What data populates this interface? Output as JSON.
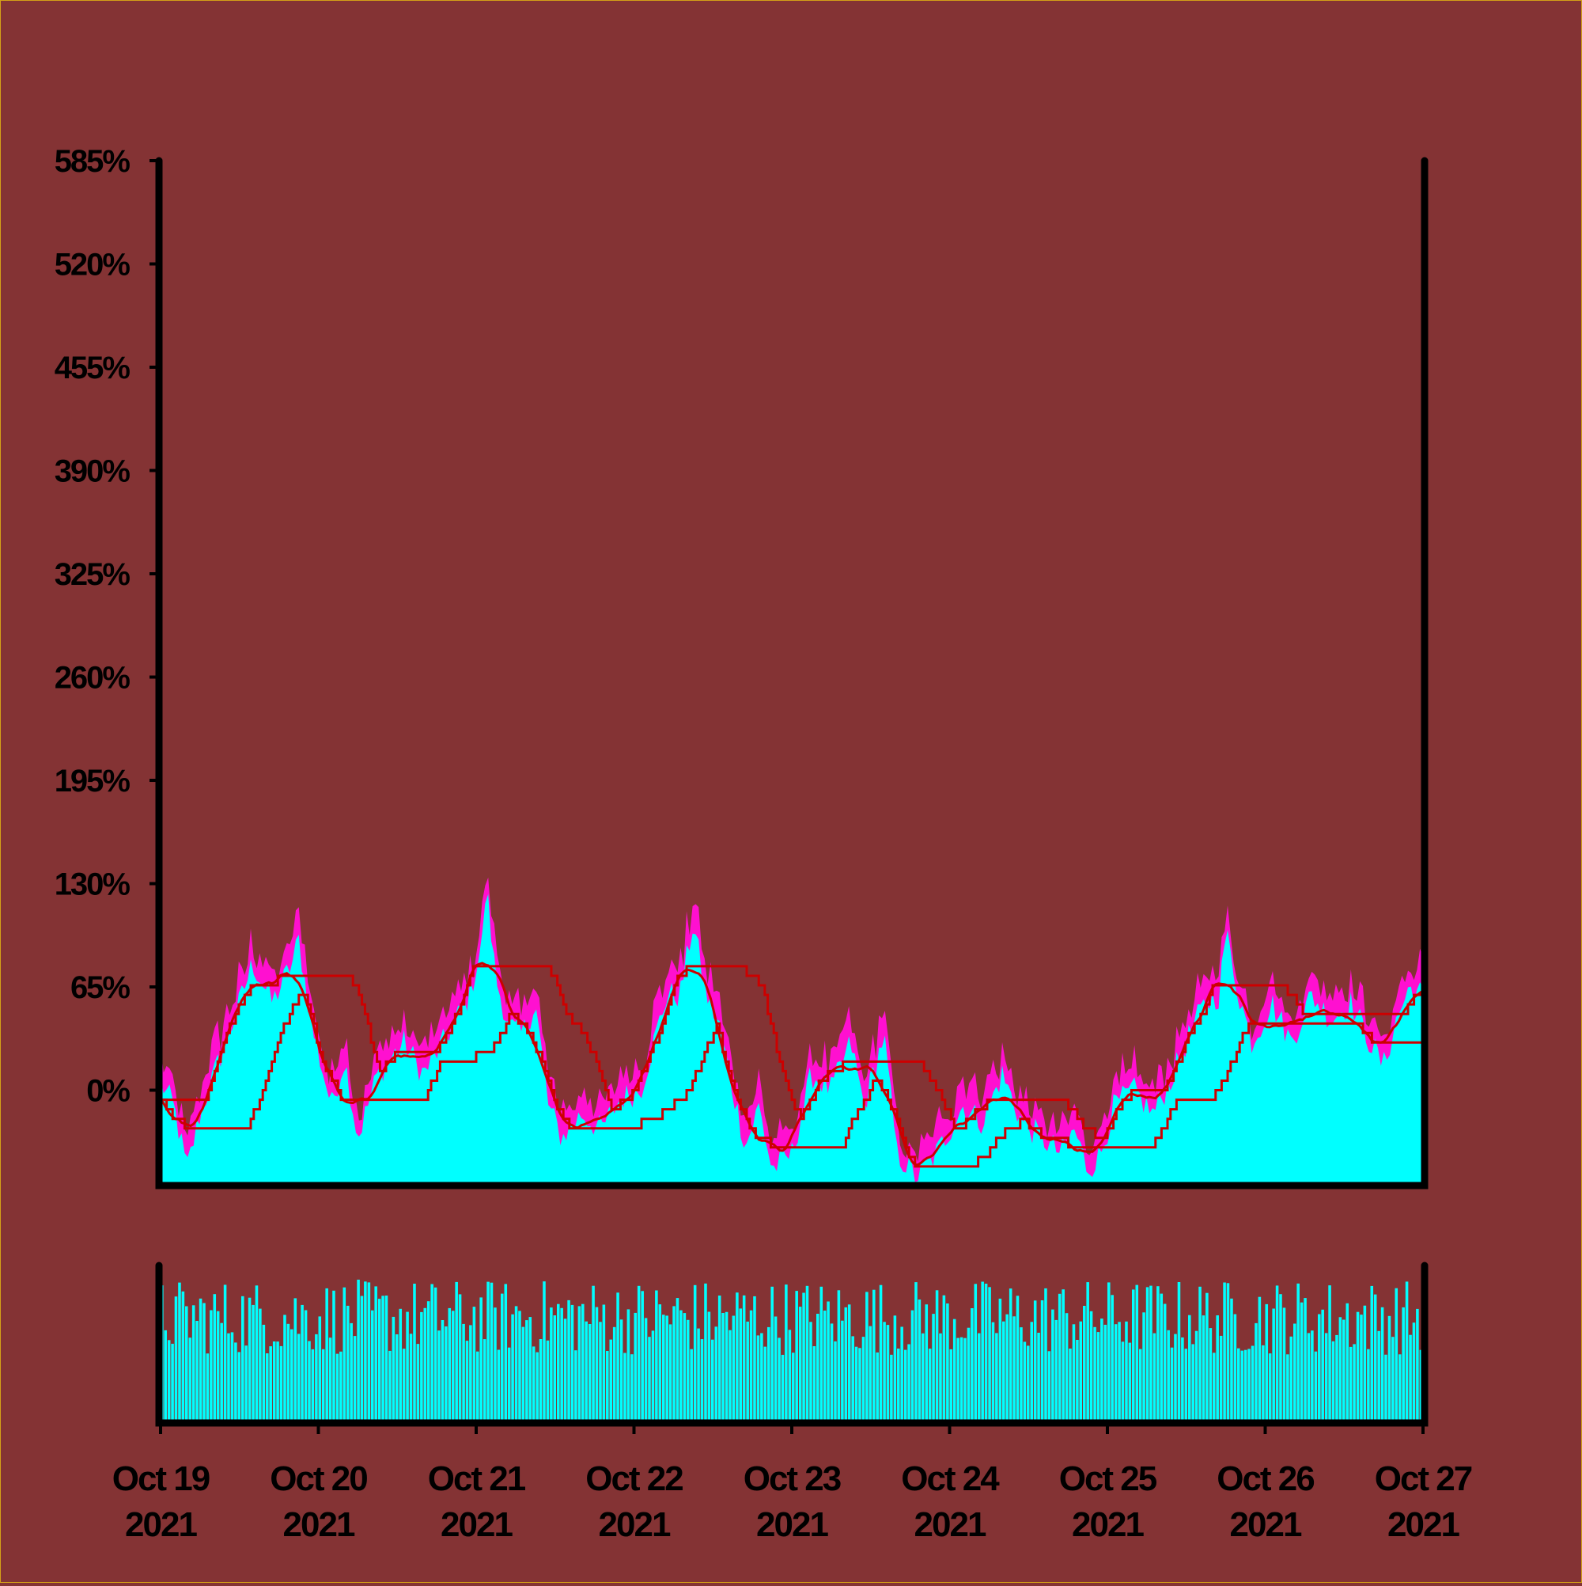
{
  "chart_data": {
    "type": "area",
    "title": "",
    "xlabel": "",
    "ylabel": "",
    "x_range": [
      "2021-10-19",
      "2021-10-27"
    ],
    "ylim": [
      -60,
      585
    ],
    "y_ticks": [
      "0%",
      "65%",
      "130%",
      "195%",
      "260%",
      "325%",
      "390%",
      "455%",
      "520%",
      "585%"
    ],
    "y_tick_values": [
      0,
      65,
      130,
      195,
      260,
      325,
      390,
      455,
      520,
      585
    ],
    "x_ticks": [
      {
        "date": "2021-10-19",
        "line1": "Oct 19",
        "line2": "2021"
      },
      {
        "date": "2021-10-20",
        "line1": "Oct 20",
        "line2": "2021"
      },
      {
        "date": "2021-10-21",
        "line1": "Oct 21",
        "line2": "2021"
      },
      {
        "date": "2021-10-22",
        "line1": "Oct 22",
        "line2": "2021"
      },
      {
        "date": "2021-10-23",
        "line1": "Oct 23",
        "line2": "2021"
      },
      {
        "date": "2021-10-24",
        "line1": "Oct 24",
        "line2": "2021"
      },
      {
        "date": "2021-10-25",
        "line1": "Oct 25",
        "line2": "2021"
      },
      {
        "date": "2021-10-26",
        "line1": "Oct 26",
        "line2": "2021"
      },
      {
        "date": "2021-10-27",
        "line1": "Oct 27",
        "line2": "2021"
      }
    ],
    "grid": false,
    "series_price_keypoints": [
      [
        "2021-10-19 00:00",
        5
      ],
      [
        "2021-10-19 02:00",
        -10
      ],
      [
        "2021-10-19 04:00",
        -50
      ],
      [
        "2021-10-19 06:00",
        -15
      ],
      [
        "2021-10-19 09:00",
        20
      ],
      [
        "2021-10-19 12:00",
        55
      ],
      [
        "2021-10-19 14:00",
        80
      ],
      [
        "2021-10-19 17:00",
        55
      ],
      [
        "2021-10-19 20:00",
        80
      ],
      [
        "2021-10-19 21:00",
        95
      ],
      [
        "2021-10-19 23:00",
        40
      ],
      [
        "2021-10-20 02:00",
        -10
      ],
      [
        "2021-10-20 04:00",
        20
      ],
      [
        "2021-10-20 06:00",
        -30
      ],
      [
        "2021-10-20 09:00",
        10
      ],
      [
        "2021-10-20 13:00",
        30
      ],
      [
        "2021-10-20 16:00",
        10
      ],
      [
        "2021-10-20 19:00",
        30
      ],
      [
        "2021-10-20 21:00",
        45
      ],
      [
        "2021-10-20 23:00",
        60
      ],
      [
        "2021-10-21 01:00",
        95
      ],
      [
        "2021-10-21 01:30",
        130
      ],
      [
        "2021-10-21 03:00",
        70
      ],
      [
        "2021-10-21 05:00",
        40
      ],
      [
        "2021-10-21 07:00",
        35
      ],
      [
        "2021-10-21 09:00",
        55
      ],
      [
        "2021-10-21 11:00",
        -10
      ],
      [
        "2021-10-21 13:00",
        -30
      ],
      [
        "2021-10-21 16:00",
        -15
      ],
      [
        "2021-10-21 19:00",
        -25
      ],
      [
        "2021-10-21 22:00",
        -5
      ],
      [
        "2021-10-22 01:00",
        0
      ],
      [
        "2021-10-22 03:00",
        30
      ],
      [
        "2021-10-22 05:00",
        60
      ],
      [
        "2021-10-22 07:00",
        60
      ],
      [
        "2021-10-22 09:00",
        105
      ],
      [
        "2021-10-22 11:00",
        60
      ],
      [
        "2021-10-22 13:00",
        40
      ],
      [
        "2021-10-22 15:00",
        0
      ],
      [
        "2021-10-22 17:00",
        -35
      ],
      [
        "2021-10-22 19:00",
        -10
      ],
      [
        "2021-10-22 21:00",
        -50
      ],
      [
        "2021-10-23 00:00",
        -40
      ],
      [
        "2021-10-23 03:00",
        10
      ],
      [
        "2021-10-23 06:00",
        0
      ],
      [
        "2021-10-23 09:00",
        30
      ],
      [
        "2021-10-23 11:00",
        -10
      ],
      [
        "2021-10-23 14:00",
        35
      ],
      [
        "2021-10-23 16:00",
        -40
      ],
      [
        "2021-10-23 19:00",
        -55
      ],
      [
        "2021-10-23 22:00",
        -40
      ],
      [
        "2021-10-24 02:00",
        -10
      ],
      [
        "2021-10-24 05:00",
        -20
      ],
      [
        "2021-10-24 08:00",
        10
      ],
      [
        "2021-10-24 11:00",
        -20
      ],
      [
        "2021-10-24 14:00",
        -30
      ],
      [
        "2021-10-24 17:00",
        -40
      ],
      [
        "2021-10-24 19:00",
        -25
      ],
      [
        "2021-10-24 21:00",
        -50
      ],
      [
        "2021-10-24 23:00",
        -40
      ],
      [
        "2021-10-25 01:00",
        -10
      ],
      [
        "2021-10-25 04:00",
        0
      ],
      [
        "2021-10-25 07:00",
        -15
      ],
      [
        "2021-10-25 10:00",
        10
      ],
      [
        "2021-10-25 13:00",
        40
      ],
      [
        "2021-10-25 15:00",
        55
      ],
      [
        "2021-10-25 17:00",
        60
      ],
      [
        "2021-10-25 18:00",
        100
      ],
      [
        "2021-10-25 20:00",
        60
      ],
      [
        "2021-10-25 22:00",
        30
      ],
      [
        "2021-10-26 01:00",
        55
      ],
      [
        "2021-10-26 04:00",
        30
      ],
      [
        "2021-10-26 07:00",
        60
      ],
      [
        "2021-10-26 10:00",
        45
      ],
      [
        "2021-10-26 13:00",
        55
      ],
      [
        "2021-10-26 16:00",
        30
      ],
      [
        "2021-10-26 18:00",
        15
      ],
      [
        "2021-10-26 20:00",
        45
      ],
      [
        "2021-10-26 22:00",
        65
      ],
      [
        "2021-10-27 00:00",
        60
      ]
    ],
    "colors": {
      "area": "#00ffff",
      "spikes": "#ff10d0",
      "bands": "#cc0000",
      "band_fill": "#2ad8d4",
      "volume": "#00ffff",
      "axes": "#000000",
      "background": "#843334"
    }
  }
}
